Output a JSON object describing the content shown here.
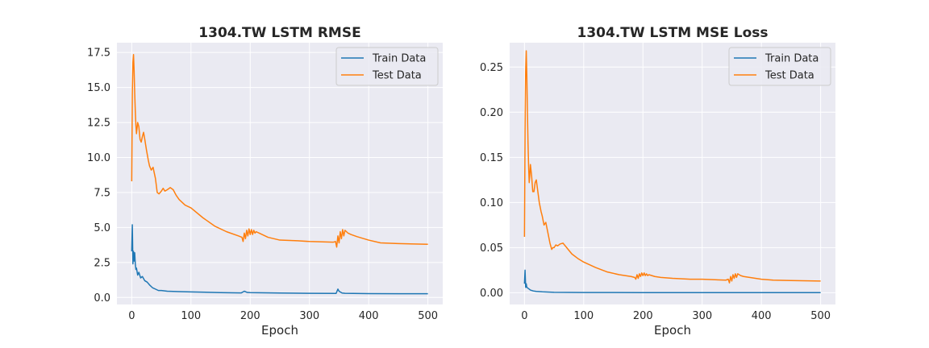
{
  "colors": {
    "train": "#1f77b4",
    "test": "#ff7f0e"
  },
  "chart_data": [
    {
      "type": "line",
      "title": "1304.TW  LSTM RMSE",
      "xlabel": "Epoch",
      "ylabel": "",
      "xlim": [
        -25,
        525
      ],
      "ylim": [
        -0.5,
        18.2
      ],
      "xticks": [
        0,
        100,
        200,
        300,
        400,
        500
      ],
      "yticks": [
        0.0,
        2.5,
        5.0,
        7.5,
        10.0,
        12.5,
        15.0,
        17.5
      ],
      "ytick_labels": [
        "0.0",
        "2.5",
        "5.0",
        "7.5",
        "10.0",
        "12.5",
        "15.0",
        "17.5"
      ],
      "legend": "top-right",
      "grid": true,
      "series": [
        {
          "name": "Train Data",
          "x": [
            0,
            1,
            2,
            3,
            4,
            5,
            6,
            7,
            8,
            10,
            12,
            15,
            18,
            22,
            26,
            30,
            35,
            40,
            45,
            50,
            60,
            80,
            100,
            150,
            185,
            190,
            195,
            200,
            250,
            300,
            345,
            348,
            350,
            355,
            360,
            400,
            450,
            500
          ],
          "y": [
            3.3,
            5.2,
            2.4,
            3.3,
            2.6,
            3.2,
            2.4,
            2.0,
            2.1,
            1.6,
            1.8,
            1.4,
            1.5,
            1.2,
            1.1,
            0.9,
            0.7,
            0.6,
            0.5,
            0.5,
            0.45,
            0.42,
            0.4,
            0.35,
            0.33,
            0.45,
            0.36,
            0.35,
            0.32,
            0.3,
            0.29,
            0.6,
            0.45,
            0.32,
            0.3,
            0.28,
            0.27,
            0.27
          ]
        },
        {
          "name": "Test Data",
          "x": [
            0,
            1,
            2,
            3,
            4,
            5,
            6,
            7,
            8,
            9,
            10,
            12,
            14,
            16,
            18,
            20,
            22,
            25,
            28,
            30,
            33,
            36,
            40,
            43,
            46,
            48,
            50,
            53,
            56,
            60,
            65,
            70,
            75,
            80,
            90,
            100,
            120,
            140,
            160,
            180,
            186,
            188,
            190,
            192,
            194,
            196,
            198,
            200,
            202,
            204,
            206,
            208,
            210,
            215,
            220,
            230,
            250,
            280,
            300,
            340,
            344,
            346,
            348,
            350,
            352,
            354,
            356,
            358,
            360,
            365,
            370,
            380,
            400,
            420,
            450,
            500
          ],
          "y": [
            8.3,
            14.5,
            16.8,
            17.35,
            16.2,
            14.6,
            13.3,
            12.3,
            11.7,
            12.1,
            12.5,
            12.2,
            11.3,
            11.1,
            11.5,
            11.8,
            11.3,
            10.5,
            9.8,
            9.4,
            9.1,
            9.3,
            8.5,
            7.5,
            7.4,
            7.5,
            7.6,
            7.8,
            7.6,
            7.7,
            7.85,
            7.7,
            7.3,
            7.0,
            6.6,
            6.4,
            5.7,
            5.1,
            4.7,
            4.4,
            4.3,
            4.0,
            4.6,
            4.2,
            4.8,
            4.4,
            4.9,
            4.5,
            4.85,
            4.5,
            4.8,
            4.6,
            4.7,
            4.6,
            4.5,
            4.3,
            4.1,
            4.05,
            4.0,
            3.95,
            4.0,
            3.6,
            4.4,
            3.9,
            4.7,
            4.2,
            4.85,
            4.4,
            4.8,
            4.6,
            4.5,
            4.35,
            4.1,
            3.9,
            3.85,
            3.8
          ]
        }
      ]
    },
    {
      "type": "line",
      "title": "1304.TW  LSTM MSE Loss",
      "xlabel": "Epoch",
      "ylabel": "",
      "xlim": [
        -25,
        525
      ],
      "ylim": [
        -0.013,
        0.277
      ],
      "xticks": [
        0,
        100,
        200,
        300,
        400,
        500
      ],
      "yticks": [
        0.0,
        0.05,
        0.1,
        0.15,
        0.2,
        0.25
      ],
      "ytick_labels": [
        "0.00",
        "0.05",
        "0.10",
        "0.15",
        "0.20",
        "0.25"
      ],
      "legend": "top-right",
      "grid": true,
      "series": [
        {
          "name": "Train Data",
          "x": [
            0,
            1,
            2,
            3,
            4,
            6,
            8,
            10,
            15,
            20,
            30,
            50,
            100,
            200,
            300,
            400,
            500
          ],
          "y": [
            0.01,
            0.025,
            0.006,
            0.01,
            0.006,
            0.005,
            0.004,
            0.003,
            0.002,
            0.0015,
            0.001,
            0.0005,
            0.0003,
            0.0002,
            0.0002,
            0.0002,
            0.0002
          ],
          "_note_ignore": null
        },
        {
          "name": "Test Data",
          "x": [
            0,
            1,
            2,
            3,
            4,
            5,
            6,
            7,
            8,
            9,
            10,
            12,
            14,
            16,
            18,
            20,
            22,
            25,
            28,
            30,
            33,
            36,
            40,
            43,
            46,
            48,
            50,
            53,
            56,
            60,
            65,
            70,
            75,
            80,
            90,
            100,
            120,
            140,
            160,
            180,
            186,
            188,
            190,
            192,
            194,
            196,
            198,
            200,
            202,
            204,
            206,
            208,
            210,
            215,
            220,
            230,
            250,
            280,
            300,
            340,
            344,
            346,
            348,
            350,
            352,
            354,
            356,
            358,
            360,
            365,
            370,
            380,
            400,
            420,
            450,
            500
          ],
          "y": [
            0.062,
            0.18,
            0.245,
            0.268,
            0.24,
            0.2,
            0.165,
            0.14,
            0.122,
            0.13,
            0.142,
            0.13,
            0.112,
            0.112,
            0.122,
            0.125,
            0.115,
            0.1,
            0.09,
            0.085,
            0.075,
            0.078,
            0.065,
            0.055,
            0.048,
            0.05,
            0.05,
            0.053,
            0.052,
            0.054,
            0.055,
            0.051,
            0.047,
            0.043,
            0.038,
            0.034,
            0.028,
            0.023,
            0.02,
            0.018,
            0.017,
            0.015,
            0.02,
            0.016,
            0.021,
            0.018,
            0.022,
            0.019,
            0.022,
            0.019,
            0.021,
            0.019,
            0.02,
            0.019,
            0.018,
            0.017,
            0.016,
            0.015,
            0.015,
            0.014,
            0.015,
            0.011,
            0.018,
            0.013,
            0.02,
            0.016,
            0.021,
            0.017,
            0.021,
            0.019,
            0.018,
            0.017,
            0.015,
            0.014,
            0.0135,
            0.013
          ]
        }
      ]
    }
  ]
}
